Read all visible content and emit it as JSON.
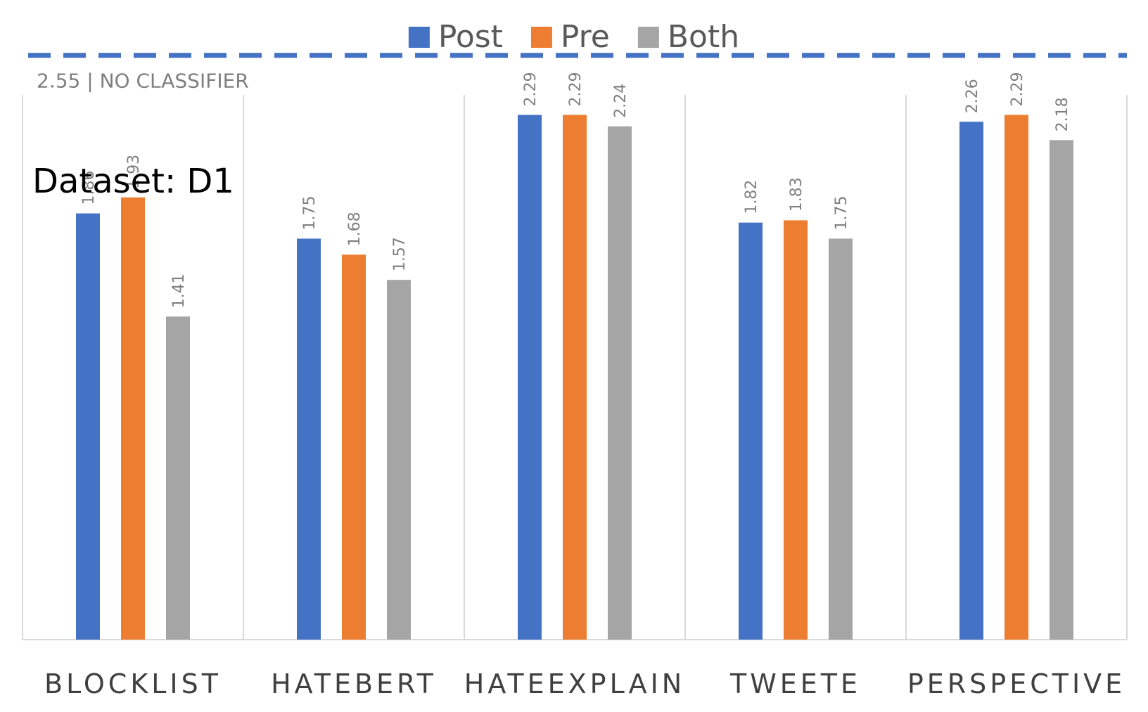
{
  "chart_data": {
    "type": "bar",
    "categories": [
      "BLOCKLIST",
      "HATEBERT",
      "HATEEXPLAIN",
      "TWEETE",
      "PERSPECTIVE"
    ],
    "series": [
      {
        "name": "Post",
        "color": "#4472c4",
        "values": [
          1.86,
          1.75,
          2.29,
          1.82,
          2.26
        ]
      },
      {
        "name": "Pre",
        "color": "#ed7d31",
        "values": [
          1.93,
          1.68,
          2.29,
          1.83,
          2.29
        ]
      },
      {
        "name": "Both",
        "color": "#a5a5a5",
        "values": [
          1.41,
          1.57,
          2.24,
          1.75,
          2.18
        ]
      }
    ],
    "reference_line": {
      "value": 2.55,
      "label": "2.55 | NO CLASSIFIER",
      "color": "#4472c4",
      "style": "dashed"
    },
    "annotation": "Dataset: D1",
    "legend_position": "top-center",
    "data_labels": "rotated-vertical",
    "grid": "vertical category separators only"
  }
}
